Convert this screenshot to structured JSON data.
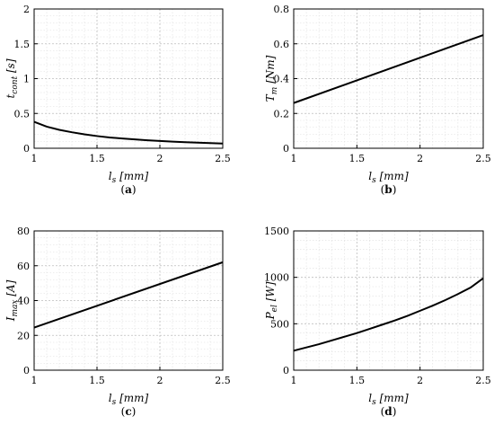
{
  "chart_data": [
    {
      "type": "line",
      "panel": "a",
      "caption": "(a)",
      "xlabel": "l_s [mm]",
      "ylabel": "t_cont [s]",
      "xlim": [
        1,
        2.5
      ],
      "ylim": [
        0,
        2
      ],
      "xticks": [
        "1",
        "1.5",
        "2",
        "2.5"
      ],
      "yticks": [
        "0",
        "0.5",
        "1",
        "1.5",
        "2"
      ],
      "grid": true,
      "series": [
        {
          "x": [
            1.0,
            1.1,
            1.2,
            1.3,
            1.4,
            1.5,
            1.6,
            1.7,
            1.8,
            1.9,
            2.0,
            2.1,
            2.2,
            2.3,
            2.4,
            2.5
          ],
          "y": [
            0.38,
            0.31,
            0.265,
            0.23,
            0.2,
            0.175,
            0.155,
            0.14,
            0.127,
            0.115,
            0.105,
            0.095,
            0.087,
            0.08,
            0.074,
            0.068
          ]
        }
      ]
    },
    {
      "type": "line",
      "panel": "b",
      "caption": "(b)",
      "xlabel": "l_s [mm]",
      "ylabel": "T_m [Nm]",
      "xlim": [
        1,
        2.5
      ],
      "ylim": [
        0,
        0.8
      ],
      "xticks": [
        "1",
        "1.5",
        "2",
        "2.5"
      ],
      "yticks": [
        "0",
        "0.2",
        "0.4",
        "0.6",
        "0.8"
      ],
      "grid": true,
      "series": [
        {
          "x": [
            1.0,
            2.5
          ],
          "y": [
            0.26,
            0.65
          ]
        }
      ]
    },
    {
      "type": "line",
      "panel": "c",
      "caption": "(c)",
      "xlabel": "l_s [mm]",
      "ylabel": "I_max [A]",
      "xlim": [
        1,
        2.5
      ],
      "ylim": [
        0,
        80
      ],
      "xticks": [
        "1",
        "1.5",
        "2",
        "2.5"
      ],
      "yticks": [
        "0",
        "20",
        "40",
        "60",
        "80"
      ],
      "grid": true,
      "series": [
        {
          "x": [
            1.0,
            2.5
          ],
          "y": [
            24.5,
            62
          ]
        }
      ]
    },
    {
      "type": "line",
      "panel": "d",
      "caption": "(d)",
      "xlabel": "l_s [mm]",
      "ylabel": "P_el [W]",
      "xlim": [
        1,
        2.5
      ],
      "ylim": [
        0,
        1500
      ],
      "xticks": [
        "1",
        "1.5",
        "2",
        "2.5"
      ],
      "yticks": [
        "0",
        "500",
        "1000",
        "1500"
      ],
      "grid": true,
      "series": [
        {
          "x": [
            1.0,
            1.1,
            1.2,
            1.3,
            1.4,
            1.5,
            1.6,
            1.7,
            1.8,
            1.9,
            2.0,
            2.1,
            2.2,
            2.3,
            2.4,
            2.5
          ],
          "y": [
            210,
            245,
            280,
            320,
            360,
            400,
            445,
            490,
            535,
            585,
            640,
            695,
            755,
            820,
            890,
            990
          ]
        }
      ]
    }
  ]
}
